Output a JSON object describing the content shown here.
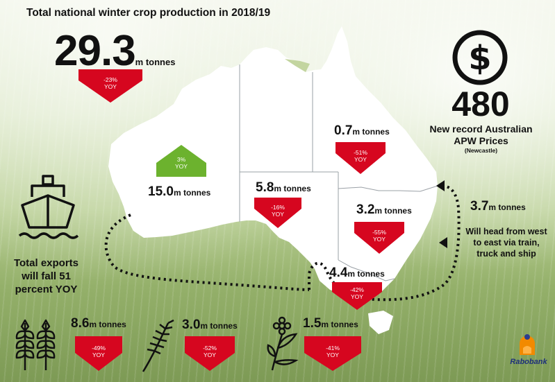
{
  "header": {
    "title": "Total national winter crop production in 2018/19"
  },
  "national": {
    "value": "29.3",
    "unit": "m tonnes",
    "change": "-23%",
    "change_unit": "YOY"
  },
  "regions": {
    "wa": {
      "value": "15.0",
      "unit": "m tonnes",
      "change": "3%",
      "change_unit": "YOY"
    },
    "sa": {
      "value": "5.8",
      "unit": "m tonnes",
      "change": "-16%",
      "change_unit": "YOY"
    },
    "qld": {
      "value": "0.7",
      "unit": "m tonnes",
      "change": "-51%",
      "change_unit": "YOY"
    },
    "nsw": {
      "value": "3.2",
      "unit": "m tonnes",
      "change": "-55%",
      "change_unit": "YOY"
    },
    "vic": {
      "value": "4.4",
      "unit": "m tonnes",
      "change": "-42%",
      "change_unit": "YOY"
    }
  },
  "price": {
    "value": "480",
    "label_line1": "New record Australian",
    "label_line2": "APW Prices",
    "sub": "(Newcastle)"
  },
  "transport": {
    "value": "3.7",
    "unit": "m tonnes",
    "line1": "Will head from west",
    "line2": "to east via train,",
    "line3": "truck and ship"
  },
  "exports": {
    "line1": "Total exports",
    "line2": "will fall 51",
    "line3": "percent YOY"
  },
  "crops": [
    {
      "icon": "wheat-icon",
      "value": "8.6",
      "unit": "m tonnes",
      "change": "-49%",
      "change_unit": "YOY"
    },
    {
      "icon": "barley-icon",
      "value": "3.0",
      "unit": "m tonnes",
      "change": "-52%",
      "change_unit": "YOY"
    },
    {
      "icon": "canola-icon",
      "value": "1.5",
      "unit": "m tonnes",
      "change": "-41%",
      "change_unit": "YOY"
    }
  ],
  "brand": {
    "name": "Rabobank"
  },
  "colors": {
    "down": "#d6061f",
    "up": "#6cb22e",
    "text": "#111111"
  }
}
